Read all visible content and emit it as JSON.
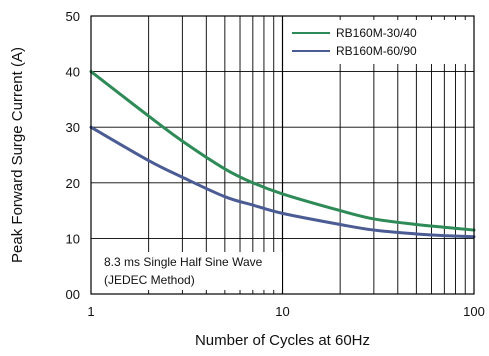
{
  "chart_data": {
    "type": "line",
    "title": "",
    "xlabel": "Number of Cycles at 60Hz",
    "ylabel": "Peak Forward Surge Current (A)",
    "xscale": "log",
    "xlim": [
      1,
      100
    ],
    "ylim": [
      0,
      50
    ],
    "x_ticks": [
      "1",
      "10",
      "100"
    ],
    "y_ticks": [
      "00",
      "10",
      "20",
      "30",
      "40",
      "50"
    ],
    "grid": true,
    "legend_position": "top-right",
    "annotation_lines": [
      "8.3 ms Single Half Sine Wave",
      "(JEDEC Method)"
    ],
    "x": [
      1,
      2,
      3,
      5,
      7,
      10,
      20,
      30,
      50,
      70,
      100
    ],
    "series": [
      {
        "name": "RB160M-30/40",
        "color": "#2e8b57",
        "values": [
          40,
          32,
          27.5,
          22.5,
          20,
          18,
          15,
          13.5,
          12.5,
          12,
          11.5
        ]
      },
      {
        "name": "RB160M-60/90",
        "color": "#4b5c94",
        "values": [
          30,
          24,
          21,
          17.5,
          16,
          14.5,
          12.5,
          11.5,
          10.8,
          10.5,
          10.3
        ]
      }
    ]
  }
}
